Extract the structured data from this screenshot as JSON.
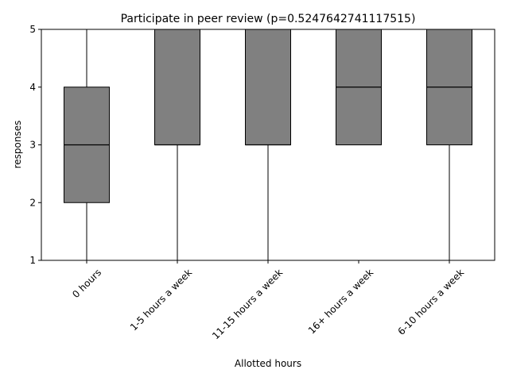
{
  "chart_data": {
    "type": "box",
    "title": "Participate in peer review (p=0.5247642741117515)",
    "xlabel": "Allotted hours",
    "ylabel": "responses",
    "ylim": [
      1,
      5
    ],
    "yticks": [
      1,
      2,
      3,
      4,
      5
    ],
    "grid": false,
    "legend": "none",
    "box_color": "#808080",
    "edge_color": "#000000",
    "categories": [
      "0 hours",
      "1-5 hours a week",
      "11-15 hours a week",
      "16+ hours a week",
      "6-10 hours a week"
    ],
    "boxes": [
      {
        "whisker_low": 1,
        "q1": 2,
        "median": 3,
        "q3": 4,
        "whisker_high": 5
      },
      {
        "whisker_low": 1,
        "q1": 3,
        "median": 3,
        "q3": 5,
        "whisker_high": 5
      },
      {
        "whisker_low": 1,
        "q1": 3,
        "median": 3,
        "q3": 5,
        "whisker_high": 5
      },
      {
        "whisker_low": 3,
        "q1": 3,
        "median": 4,
        "q3": 5,
        "whisker_high": 5
      },
      {
        "whisker_low": 1,
        "q1": 3,
        "median": 4,
        "q3": 5,
        "whisker_high": 5
      }
    ]
  }
}
